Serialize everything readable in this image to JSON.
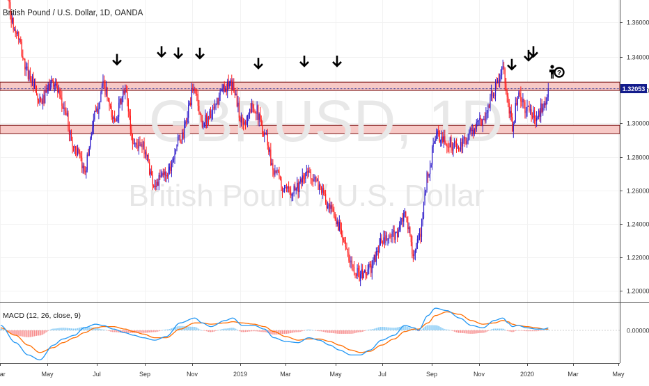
{
  "symbol_title": "British Pound / U.S. Dollar, 1D, OANDA",
  "watermark": {
    "symbol": "GBPUSD, 1D",
    "description": "British Pound / U.S. Dollar"
  },
  "price_badge": "1.32053",
  "macd_title": "MACD (12, 26, close, 9)",
  "icons": {
    "arrow": "down-arrow-icon",
    "person": "person-question-icon"
  },
  "colors": {
    "up": "#2e1bc9",
    "down": "#ff1a1a",
    "zone_fill": "#f7c9c6",
    "zone_border": "#7a0f0f",
    "macd_line": "#2196f3",
    "signal_line": "#ff6d00",
    "hist_pos": "#7fc7f5",
    "hist_neg": "#f78a8a",
    "badge_bg": "#131c8c"
  },
  "chart_data": [
    {
      "type": "candlestick",
      "title": "British Pound / U.S. Dollar, 1D, OANDA",
      "x_tick_labels": [
        "Mar",
        "May",
        "Jul",
        "Sep",
        "Nov",
        "2019",
        "Mar",
        "May",
        "Jul",
        "Sep",
        "Nov",
        "2020",
        "Mar",
        "May"
      ],
      "y_tick_labels": [
        "1.36000",
        "1.34000",
        "1.32000",
        "1.30000",
        "1.28000",
        "1.26000",
        "1.24000",
        "1.22000",
        "1.20000"
      ],
      "ylim": [
        1.193,
        1.374
      ],
      "last_price": 1.32053,
      "resistance_zone": [
        1.3195,
        1.3245
      ],
      "support_zone": [
        1.2935,
        1.2985
      ],
      "trend_anchors": [
        [
          0,
          1.395
        ],
        [
          14,
          1.355
        ],
        [
          26,
          1.33
        ],
        [
          37,
          1.312
        ],
        [
          50,
          1.325
        ],
        [
          59,
          1.31
        ],
        [
          70,
          1.285
        ],
        [
          79,
          1.272
        ],
        [
          90,
          1.305
        ],
        [
          97,
          1.322
        ],
        [
          107,
          1.302
        ],
        [
          118,
          1.318
        ],
        [
          126,
          1.288
        ],
        [
          135,
          1.285
        ],
        [
          146,
          1.263
        ],
        [
          157,
          1.27
        ],
        [
          170,
          1.29
        ],
        [
          184,
          1.32
        ],
        [
          191,
          1.3
        ],
        [
          199,
          1.305
        ],
        [
          213,
          1.322
        ],
        [
          220,
          1.322
        ],
        [
          229,
          1.3
        ],
        [
          240,
          1.31
        ],
        [
          250,
          1.295
        ],
        [
          259,
          1.272
        ],
        [
          270,
          1.258
        ],
        [
          282,
          1.262
        ],
        [
          292,
          1.27
        ],
        [
          302,
          1.262
        ],
        [
          312,
          1.247
        ],
        [
          321,
          1.238
        ],
        [
          332,
          1.215
        ],
        [
          341,
          1.208
        ],
        [
          350,
          1.212
        ],
        [
          361,
          1.228
        ],
        [
          373,
          1.232
        ],
        [
          383,
          1.243
        ],
        [
          392,
          1.222
        ],
        [
          396,
          1.228
        ],
        [
          405,
          1.268
        ],
        [
          412,
          1.292
        ],
        [
          423,
          1.288
        ],
        [
          435,
          1.285
        ],
        [
          446,
          1.295
        ],
        [
          457,
          1.302
        ],
        [
          468,
          1.32
        ],
        [
          476,
          1.332
        ],
        [
          481,
          1.31
        ],
        [
          485,
          1.298
        ],
        [
          490,
          1.316
        ],
        [
          499,
          1.308
        ],
        [
          508,
          1.303
        ],
        [
          515,
          1.312
        ],
        [
          519,
          1.3205
        ]
      ],
      "resistance_touch_arrows": [
        1.3348,
        1.3395,
        1.3387,
        1.3385,
        1.3325,
        1.3338,
        1.3338,
        1.3318,
        1.3372,
        1.3395
      ]
    },
    {
      "type": "line",
      "title": "MACD (12, 26, close, 9)",
      "y_tick_labels": [
        "0.00000"
      ],
      "series": [
        {
          "values": "MACD line",
          "anchors": [
            [
              0,
              0.004
            ],
            [
              14,
              -0.01
            ],
            [
              26,
              -0.02
            ],
            [
              37,
              -0.024
            ],
            [
              50,
              -0.012
            ],
            [
              59,
              -0.007
            ],
            [
              70,
              -0.004
            ],
            [
              79,
              0.002
            ],
            [
              90,
              0.005
            ],
            [
              97,
              0.004
            ],
            [
              107,
              0.001
            ],
            [
              118,
              -0.002
            ],
            [
              126,
              -0.004
            ],
            [
              135,
              -0.006
            ],
            [
              146,
              -0.008
            ],
            [
              157,
              -0.005
            ],
            [
              170,
              0.006
            ],
            [
              184,
              0.01
            ],
            [
              191,
              0.006
            ],
            [
              199,
              0.003
            ],
            [
              213,
              0.008
            ],
            [
              220,
              0.01
            ],
            [
              229,
              0.004
            ],
            [
              240,
              0.004
            ],
            [
              250,
              0.001
            ],
            [
              259,
              -0.006
            ],
            [
              270,
              -0.009
            ],
            [
              282,
              -0.01
            ],
            [
              292,
              -0.006
            ],
            [
              302,
              -0.008
            ],
            [
              312,
              -0.012
            ],
            [
              321,
              -0.016
            ],
            [
              332,
              -0.02
            ],
            [
              341,
              -0.02
            ],
            [
              350,
              -0.016
            ],
            [
              361,
              -0.008
            ],
            [
              373,
              -0.004
            ],
            [
              383,
              0.004
            ],
            [
              392,
              0.002
            ],
            [
              396,
              0.0
            ],
            [
              405,
              0.012
            ],
            [
              412,
              0.018
            ],
            [
              423,
              0.016
            ],
            [
              435,
              0.01
            ],
            [
              446,
              0.004
            ],
            [
              457,
              0.002
            ],
            [
              468,
              0.008
            ],
            [
              476,
              0.01
            ],
            [
              481,
              0.006
            ],
            [
              485,
              0.003
            ],
            [
              490,
              0.004
            ],
            [
              499,
              0.002
            ],
            [
              508,
              0.001
            ],
            [
              515,
              0.001
            ],
            [
              519,
              0.002
            ]
          ]
        },
        {
          "values": "Signal line",
          "anchors": [
            [
              0,
              0.002
            ],
            [
              14,
              -0.004
            ],
            [
              26,
              -0.012
            ],
            [
              37,
              -0.018
            ],
            [
              50,
              -0.014
            ],
            [
              59,
              -0.01
            ],
            [
              70,
              -0.006
            ],
            [
              79,
              -0.002
            ],
            [
              90,
              0.002
            ],
            [
              97,
              0.003
            ],
            [
              107,
              0.003
            ],
            [
              118,
              0.001
            ],
            [
              126,
              -0.001
            ],
            [
              135,
              -0.003
            ],
            [
              146,
              -0.006
            ],
            [
              157,
              -0.006
            ],
            [
              170,
              0.001
            ],
            [
              184,
              0.006
            ],
            [
              191,
              0.006
            ],
            [
              199,
              0.005
            ],
            [
              213,
              0.006
            ],
            [
              220,
              0.007
            ],
            [
              229,
              0.006
            ],
            [
              240,
              0.005
            ],
            [
              250,
              0.003
            ],
            [
              259,
              -0.001
            ],
            [
              270,
              -0.005
            ],
            [
              282,
              -0.008
            ],
            [
              292,
              -0.007
            ],
            [
              302,
              -0.007
            ],
            [
              312,
              -0.009
            ],
            [
              321,
              -0.012
            ],
            [
              332,
              -0.016
            ],
            [
              341,
              -0.018
            ],
            [
              350,
              -0.017
            ],
            [
              361,
              -0.012
            ],
            [
              373,
              -0.007
            ],
            [
              383,
              -0.001
            ],
            [
              392,
              0.001
            ],
            [
              396,
              0.001
            ],
            [
              405,
              0.006
            ],
            [
              412,
              0.012
            ],
            [
              423,
              0.015
            ],
            [
              435,
              0.013
            ],
            [
              446,
              0.008
            ],
            [
              457,
              0.005
            ],
            [
              468,
              0.006
            ],
            [
              476,
              0.008
            ],
            [
              481,
              0.007
            ],
            [
              485,
              0.005
            ],
            [
              490,
              0.004
            ],
            [
              499,
              0.003
            ],
            [
              508,
              0.002
            ],
            [
              515,
              0.001
            ],
            [
              519,
              0.001
            ]
          ]
        }
      ],
      "ylim": [
        -0.026,
        0.022
      ]
    }
  ]
}
